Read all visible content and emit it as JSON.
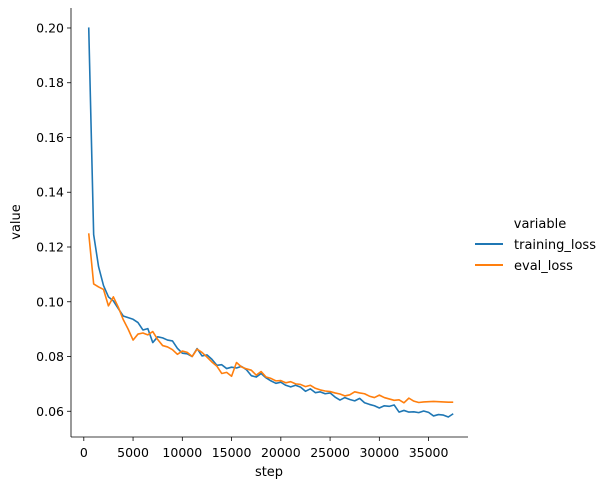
{
  "chart_data": {
    "type": "line",
    "xlabel": "step",
    "ylabel": "value",
    "xlim": [
      -1300,
      39000
    ],
    "ylim": [
      0.0506,
      0.2073
    ],
    "x_ticks": [
      0,
      5000,
      10000,
      15000,
      20000,
      25000,
      30000,
      35000
    ],
    "y_ticks": [
      0.06,
      0.08,
      0.1,
      0.12,
      0.14,
      0.16,
      0.18,
      0.2
    ],
    "y_tick_labels": [
      "0.06",
      "0.08",
      "0.10",
      "0.12",
      "0.14",
      "0.16",
      "0.18",
      "0.20"
    ],
    "grid": false,
    "legend": {
      "title": "variable",
      "placement": "right"
    },
    "series": [
      {
        "name": "training_loss",
        "color": "#1f77b4",
        "points": [
          [
            500,
            0.2002
          ],
          [
            1000,
            0.1245
          ],
          [
            1500,
            0.1128
          ],
          [
            2000,
            0.1059
          ],
          [
            2500,
            0.1018
          ],
          [
            3000,
            0.1003
          ],
          [
            3500,
            0.0975
          ],
          [
            4000,
            0.0948
          ],
          [
            4500,
            0.0942
          ],
          [
            5000,
            0.0936
          ],
          [
            5500,
            0.0924
          ],
          [
            6000,
            0.0897
          ],
          [
            6500,
            0.0902
          ],
          [
            7000,
            0.0851
          ],
          [
            7500,
            0.0872
          ],
          [
            8000,
            0.0868
          ],
          [
            8500,
            0.086
          ],
          [
            9000,
            0.0857
          ],
          [
            9500,
            0.083
          ],
          [
            10000,
            0.0812
          ],
          [
            10500,
            0.081
          ],
          [
            11000,
            0.08
          ],
          [
            11500,
            0.0829
          ],
          [
            12000,
            0.0802
          ],
          [
            12500,
            0.0806
          ],
          [
            13000,
            0.079
          ],
          [
            13500,
            0.0768
          ],
          [
            14000,
            0.077
          ],
          [
            14500,
            0.0756
          ],
          [
            15000,
            0.0761
          ],
          [
            15500,
            0.0758
          ],
          [
            16000,
            0.0764
          ],
          [
            16500,
            0.0752
          ],
          [
            17000,
            0.073
          ],
          [
            17500,
            0.0725
          ],
          [
            18000,
            0.0738
          ],
          [
            18500,
            0.0722
          ],
          [
            19000,
            0.0711
          ],
          [
            19500,
            0.0702
          ],
          [
            20000,
            0.0706
          ],
          [
            20500,
            0.0695
          ],
          [
            21000,
            0.0689
          ],
          [
            21500,
            0.0695
          ],
          [
            22000,
            0.0688
          ],
          [
            22500,
            0.0673
          ],
          [
            23000,
            0.0682
          ],
          [
            23500,
            0.0668
          ],
          [
            24000,
            0.0671
          ],
          [
            24500,
            0.0664
          ],
          [
            25000,
            0.0667
          ],
          [
            25500,
            0.0652
          ],
          [
            26000,
            0.0641
          ],
          [
            26500,
            0.065
          ],
          [
            27000,
            0.0643
          ],
          [
            27500,
            0.0638
          ],
          [
            28000,
            0.0647
          ],
          [
            28500,
            0.0631
          ],
          [
            29000,
            0.0625
          ],
          [
            29500,
            0.062
          ],
          [
            30000,
            0.0612
          ],
          [
            30500,
            0.062
          ],
          [
            31000,
            0.0618
          ],
          [
            31500,
            0.0623
          ],
          [
            32000,
            0.0597
          ],
          [
            32500,
            0.0603
          ],
          [
            33000,
            0.0597
          ],
          [
            33500,
            0.0598
          ],
          [
            34000,
            0.0595
          ],
          [
            34500,
            0.0601
          ],
          [
            35000,
            0.0596
          ],
          [
            35500,
            0.0583
          ],
          [
            36000,
            0.0588
          ],
          [
            36500,
            0.0586
          ],
          [
            37000,
            0.0579
          ],
          [
            37500,
            0.0591
          ]
        ]
      },
      {
        "name": "eval_loss",
        "color": "#ff7f0e",
        "points": [
          [
            500,
            0.125
          ],
          [
            1000,
            0.1065
          ],
          [
            1500,
            0.1054
          ],
          [
            2000,
            0.1045
          ],
          [
            2500,
            0.0985
          ],
          [
            3000,
            0.1018
          ],
          [
            3500,
            0.098
          ],
          [
            4000,
            0.0935
          ],
          [
            4500,
            0.09
          ],
          [
            5000,
            0.086
          ],
          [
            5500,
            0.0882
          ],
          [
            6000,
            0.0886
          ],
          [
            6500,
            0.0879
          ],
          [
            7000,
            0.0891
          ],
          [
            7500,
            0.0862
          ],
          [
            8000,
            0.084
          ],
          [
            8500,
            0.0835
          ],
          [
            9000,
            0.0825
          ],
          [
            9500,
            0.0808
          ],
          [
            10000,
            0.082
          ],
          [
            10500,
            0.0815
          ],
          [
            11000,
            0.08
          ],
          [
            11500,
            0.0827
          ],
          [
            12000,
            0.0815
          ],
          [
            12500,
            0.0798
          ],
          [
            13000,
            0.078
          ],
          [
            13500,
            0.0765
          ],
          [
            14000,
            0.0738
          ],
          [
            14500,
            0.0742
          ],
          [
            15000,
            0.0728
          ],
          [
            15500,
            0.0778
          ],
          [
            16000,
            0.0762
          ],
          [
            16500,
            0.0755
          ],
          [
            17000,
            0.075
          ],
          [
            17500,
            0.0732
          ],
          [
            18000,
            0.0745
          ],
          [
            18500,
            0.0725
          ],
          [
            19000,
            0.072
          ],
          [
            19500,
            0.0711
          ],
          [
            20000,
            0.0712
          ],
          [
            20500,
            0.0704
          ],
          [
            21000,
            0.0708
          ],
          [
            21500,
            0.07
          ],
          [
            22000,
            0.0698
          ],
          [
            22500,
            0.069
          ],
          [
            23000,
            0.0695
          ],
          [
            23500,
            0.0684
          ],
          [
            24000,
            0.0678
          ],
          [
            24500,
            0.0674
          ],
          [
            25000,
            0.0672
          ],
          [
            25500,
            0.0667
          ],
          [
            26000,
            0.0663
          ],
          [
            26500,
            0.0656
          ],
          [
            27000,
            0.066
          ],
          [
            27500,
            0.0671
          ],
          [
            28000,
            0.0667
          ],
          [
            28500,
            0.0664
          ],
          [
            29000,
            0.0655
          ],
          [
            29500,
            0.065
          ],
          [
            30000,
            0.0659
          ],
          [
            30500,
            0.065
          ],
          [
            31000,
            0.0645
          ],
          [
            31500,
            0.064
          ],
          [
            32000,
            0.0642
          ],
          [
            32500,
            0.0631
          ],
          [
            33000,
            0.0648
          ],
          [
            33500,
            0.0637
          ],
          [
            34000,
            0.0632
          ],
          [
            34500,
            0.0634
          ],
          [
            35000,
            0.0635
          ],
          [
            35500,
            0.0636
          ],
          [
            36000,
            0.0635
          ],
          [
            36500,
            0.0634
          ],
          [
            37000,
            0.0633
          ],
          [
            37500,
            0.0633
          ]
        ]
      }
    ]
  }
}
